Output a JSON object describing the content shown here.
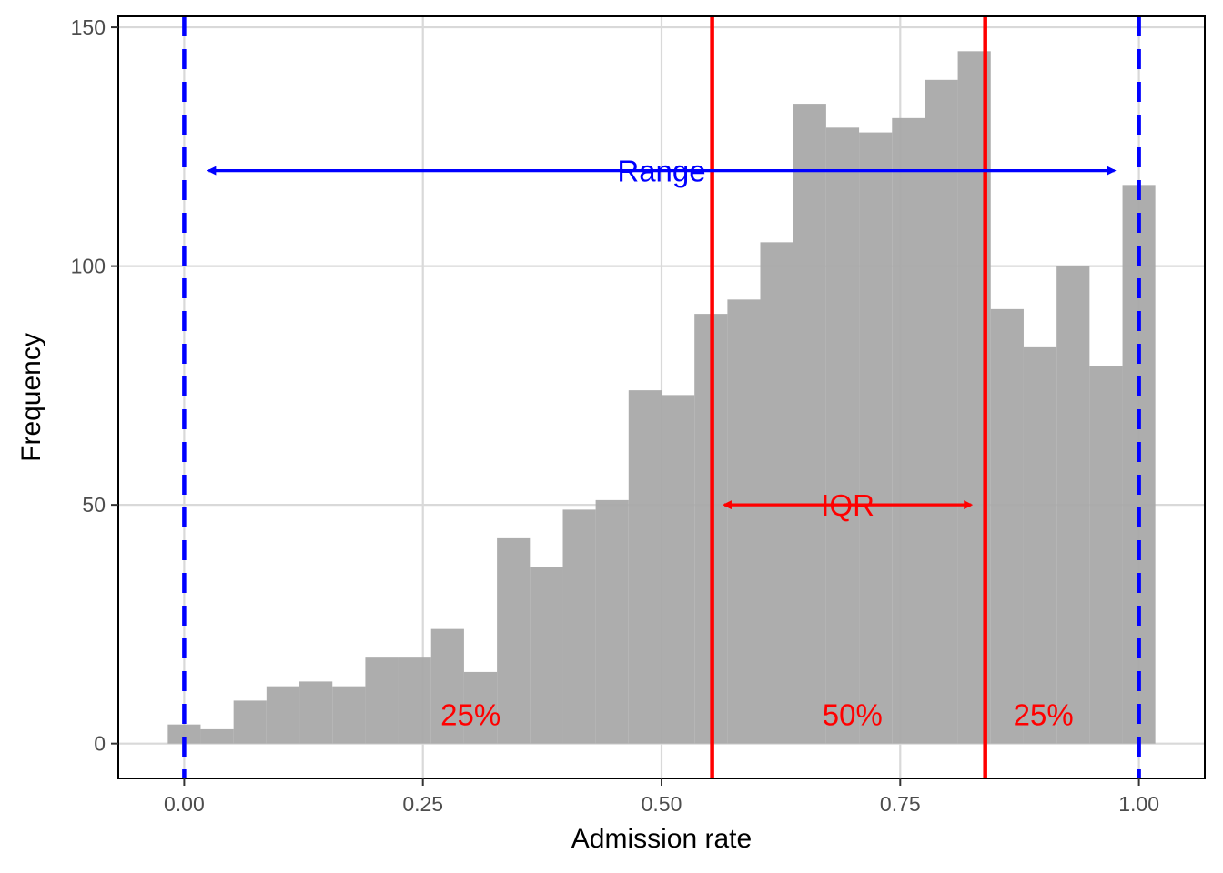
{
  "chart_data": {
    "type": "bar",
    "subtype": "histogram",
    "xlabel": "Admission rate",
    "ylabel": "Frequency",
    "xlim": [
      -0.069,
      1.069
    ],
    "ylim": [
      -7.3,
      152.3
    ],
    "x_ticks": [
      0,
      0.25,
      0.5,
      0.75,
      1
    ],
    "x_tick_labels": [
      "0.00",
      "0.25",
      "0.50",
      "0.75",
      "1.00"
    ],
    "y_ticks": [
      0,
      50,
      100,
      150
    ],
    "y_tick_labels": [
      "0",
      "50",
      "100",
      "150"
    ],
    "grid": true,
    "bin_width": 0.0345,
    "bins": [
      {
        "x0": -0.0172,
        "x1": 0.0172,
        "count": 4
      },
      {
        "x0": 0.0172,
        "x1": 0.0517,
        "count": 3
      },
      {
        "x0": 0.0517,
        "x1": 0.0862,
        "count": 9
      },
      {
        "x0": 0.0862,
        "x1": 0.1207,
        "count": 12
      },
      {
        "x0": 0.1207,
        "x1": 0.1552,
        "count": 13
      },
      {
        "x0": 0.1552,
        "x1": 0.1897,
        "count": 12
      },
      {
        "x0": 0.1897,
        "x1": 0.2241,
        "count": 18
      },
      {
        "x0": 0.2241,
        "x1": 0.2586,
        "count": 18
      },
      {
        "x0": 0.2586,
        "x1": 0.2931,
        "count": 24
      },
      {
        "x0": 0.2931,
        "x1": 0.3276,
        "count": 15
      },
      {
        "x0": 0.3276,
        "x1": 0.3621,
        "count": 43
      },
      {
        "x0": 0.3621,
        "x1": 0.3966,
        "count": 37
      },
      {
        "x0": 0.3966,
        "x1": 0.431,
        "count": 49
      },
      {
        "x0": 0.431,
        "x1": 0.4655,
        "count": 51
      },
      {
        "x0": 0.4655,
        "x1": 0.5,
        "count": 74
      },
      {
        "x0": 0.5,
        "x1": 0.5345,
        "count": 73
      },
      {
        "x0": 0.5345,
        "x1": 0.569,
        "count": 90
      },
      {
        "x0": 0.569,
        "x1": 0.6034,
        "count": 93
      },
      {
        "x0": 0.6034,
        "x1": 0.6379,
        "count": 105
      },
      {
        "x0": 0.6379,
        "x1": 0.6724,
        "count": 134
      },
      {
        "x0": 0.6724,
        "x1": 0.7069,
        "count": 129
      },
      {
        "x0": 0.7069,
        "x1": 0.7414,
        "count": 128
      },
      {
        "x0": 0.7414,
        "x1": 0.7759,
        "count": 131
      },
      {
        "x0": 0.7759,
        "x1": 0.8103,
        "count": 139
      },
      {
        "x0": 0.8103,
        "x1": 0.8448,
        "count": 145
      },
      {
        "x0": 0.8448,
        "x1": 0.8793,
        "count": 91
      },
      {
        "x0": 0.8793,
        "x1": 0.9138,
        "count": 83
      },
      {
        "x0": 0.9138,
        "x1": 0.9483,
        "count": 100
      },
      {
        "x0": 0.9483,
        "x1": 0.9828,
        "count": 79
      },
      {
        "x0": 0.9828,
        "x1": 1.0172,
        "count": 117
      }
    ],
    "reference_lines": [
      {
        "name": "min",
        "x": 0,
        "style": "dashed",
        "color": "#0000ff"
      },
      {
        "name": "max",
        "x": 1,
        "style": "dashed",
        "color": "#0000ff"
      },
      {
        "name": "q1",
        "x": 0.553,
        "style": "solid",
        "color": "#ff0000"
      },
      {
        "name": "q3",
        "x": 0.839,
        "style": "solid",
        "color": "#ff0000"
      }
    ],
    "annotations": [
      {
        "name": "range-arrow",
        "text": "Range",
        "x_from": 0.02,
        "x_to": 0.98,
        "y": 120,
        "color": "#0000ff"
      },
      {
        "name": "iqr-arrow",
        "text": "IQR",
        "x_from": 0.56,
        "x_to": 0.83,
        "y": 50,
        "color": "#ff0000"
      }
    ],
    "percent_labels": [
      {
        "text": "25%",
        "x": 0.3,
        "y": 5
      },
      {
        "text": "50%",
        "x": 0.7,
        "y": 5
      },
      {
        "text": "25%",
        "x": 0.9,
        "y": 5
      }
    ],
    "colors": {
      "bars": "#a9a9a9",
      "grid": "#d9d9d9",
      "range": "#0000ff",
      "iqr": "#ff0000"
    }
  }
}
